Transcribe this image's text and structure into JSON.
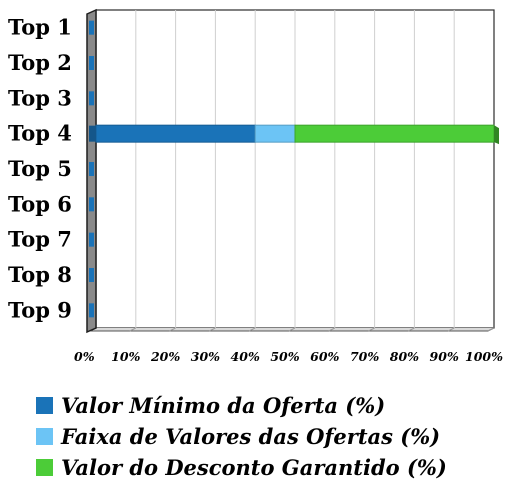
{
  "chart_data": {
    "type": "bar",
    "orientation": "horizontal",
    "stacked": true,
    "categories": [
      "Top 1",
      "Top 2",
      "Top 3",
      "Top 4",
      "Top 5",
      "Top 6",
      "Top 7",
      "Top 8",
      "Top 9"
    ],
    "series": [
      {
        "name": "Valor Mínimo da Oferta (%)",
        "color": "#1a73b8",
        "values": [
          0,
          0,
          0,
          40,
          0,
          0,
          0,
          0,
          0
        ]
      },
      {
        "name": "Faixa de Valores das Ofertas (%)",
        "color": "#6cc4f5",
        "values": [
          0,
          0,
          0,
          10,
          0,
          0,
          0,
          0,
          0
        ]
      },
      {
        "name": "Valor do Desconto Garantido (%)",
        "color": "#4ccc38",
        "values": [
          0,
          0,
          0,
          50,
          0,
          0,
          0,
          0,
          0
        ]
      }
    ],
    "xlim": [
      0,
      100
    ],
    "xticks": [
      "0%",
      "10%",
      "20%",
      "30%",
      "40%",
      "50%",
      "60%",
      "70%",
      "80%",
      "90%",
      "100%"
    ],
    "grid": true,
    "legend_position": "bottom"
  }
}
